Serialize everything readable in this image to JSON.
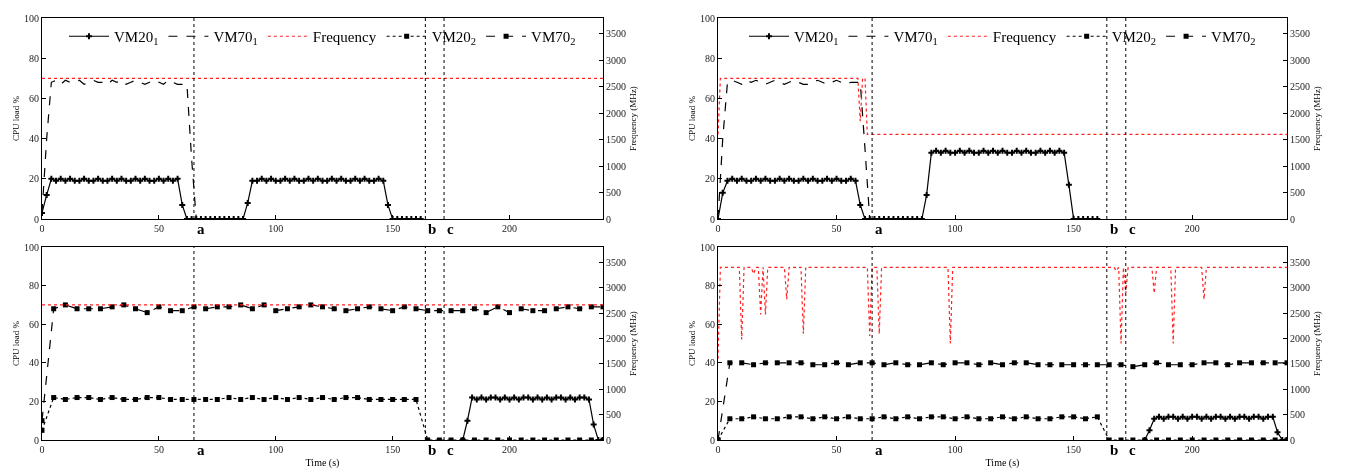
{
  "chart_data": [
    {
      "type": "line",
      "ylabel": "CPU load %",
      "y2label": "Frequency (MHz)",
      "xlim": [
        0,
        240
      ],
      "xticks": [
        0,
        50,
        100,
        150,
        200
      ],
      "ylim": [
        0,
        100
      ],
      "yticks": [
        0,
        20,
        40,
        60,
        80,
        100
      ],
      "y2lim": [
        0,
        3800
      ],
      "y2ticks": [
        0,
        500,
        1000,
        1500,
        2000,
        2500,
        3000,
        3500
      ],
      "legend": "top",
      "ref_lines": [
        {
          "axis": "x",
          "value": 65,
          "label": "a",
          "color": "#000000",
          "line_style": "dotted"
        },
        {
          "axis": "x",
          "value": 164,
          "label": "b",
          "color": "#000000",
          "line_style": "dotted"
        },
        {
          "axis": "x",
          "value": 172,
          "label": "c",
          "color": "#000000",
          "line_style": "dotted"
        }
      ],
      "series": [
        {
          "name": "VM20$_{1}$",
          "color": "#000000",
          "marker": "cross",
          "line_style": "solid",
          "x": [
            0,
            2,
            4,
            6,
            8,
            10,
            12,
            14,
            16,
            18,
            20,
            22,
            24,
            26,
            28,
            30,
            32,
            34,
            36,
            38,
            40,
            42,
            44,
            46,
            48,
            50,
            52,
            54,
            56,
            58,
            60,
            62,
            64,
            66,
            68,
            70,
            72,
            74,
            76,
            78,
            80,
            82,
            84,
            86,
            88,
            90,
            92,
            94,
            96,
            98,
            100,
            102,
            104,
            106,
            108,
            110,
            112,
            114,
            116,
            118,
            120,
            122,
            124,
            126,
            128,
            130,
            132,
            134,
            136,
            138,
            140,
            142,
            144,
            146,
            148,
            150,
            152,
            154,
            156,
            158,
            160,
            162
          ],
          "values": [
            3,
            12,
            20,
            19,
            20,
            19,
            20,
            19,
            19,
            20,
            19,
            19,
            20,
            19,
            19,
            20,
            19,
            20,
            19,
            19,
            20,
            19,
            20,
            19,
            19,
            20,
            19,
            20,
            19,
            20,
            7,
            0,
            0,
            0,
            0,
            0,
            0,
            0,
            0,
            0,
            0,
            0,
            0,
            0,
            8,
            19,
            19,
            20,
            19,
            20,
            19,
            19,
            20,
            19,
            20,
            19,
            19,
            20,
            19,
            20,
            19,
            19,
            20,
            19,
            20,
            19,
            19,
            20,
            19,
            20,
            19,
            19,
            20,
            19,
            7,
            0,
            0,
            0,
            0,
            0,
            0,
            0
          ]
        },
        {
          "name": "VM70$_{1}$",
          "color": "#000000",
          "marker": "none",
          "line_style": "dashed",
          "x": [
            0,
            2,
            4,
            6,
            8,
            10,
            12,
            14,
            16,
            18,
            20,
            22,
            24,
            26,
            28,
            30,
            32,
            34,
            36,
            38,
            40,
            42,
            44,
            46,
            48,
            50,
            52,
            54,
            56,
            58,
            60,
            62,
            64,
            66
          ],
          "values": [
            3,
            40,
            68,
            69,
            67,
            69,
            68,
            68,
            69,
            67,
            68,
            69,
            68,
            68,
            67,
            69,
            68,
            69,
            67,
            68,
            69,
            68,
            67,
            68,
            69,
            68,
            67,
            69,
            68,
            67,
            67,
            67,
            30,
            0
          ]
        },
        {
          "name": "Frequency",
          "color": "#ff2020",
          "marker": "none",
          "line_style": "dotted",
          "axis": "y2",
          "x": [
            0,
            240
          ],
          "values": [
            2660,
            2660
          ]
        },
        {
          "name": "VM20$_{2}$",
          "color": "#000000",
          "marker": "square",
          "line_style": "dotted"
        },
        {
          "name": "VM70$_{2}$",
          "color": "#000000",
          "marker": "square",
          "line_style": "dashed"
        }
      ]
    },
    {
      "type": "line",
      "ylabel": "CPU load %",
      "y2label": "Frequency (MHz)",
      "xlim": [
        0,
        240
      ],
      "xticks": [
        0,
        50,
        100,
        150,
        200
      ],
      "ylim": [
        0,
        100
      ],
      "yticks": [
        0,
        20,
        40,
        60,
        80,
        100
      ],
      "y2lim": [
        0,
        3800
      ],
      "y2ticks": [
        0,
        500,
        1000,
        1500,
        2000,
        2500,
        3000,
        3500
      ],
      "legend": "top",
      "ref_lines": [
        {
          "axis": "x",
          "value": 65,
          "label": "a",
          "color": "#000000",
          "line_style": "dotted"
        },
        {
          "axis": "x",
          "value": 164,
          "label": "b",
          "color": "#000000",
          "line_style": "dotted"
        },
        {
          "axis": "x",
          "value": 172,
          "label": "c",
          "color": "#000000",
          "line_style": "dotted"
        }
      ],
      "series": [
        {
          "name": "VM20$_{1}$",
          "color": "#000000",
          "marker": "cross",
          "line_style": "solid",
          "x": [
            0,
            2,
            4,
            6,
            8,
            10,
            12,
            14,
            16,
            18,
            20,
            22,
            24,
            26,
            28,
            30,
            32,
            34,
            36,
            38,
            40,
            42,
            44,
            46,
            48,
            50,
            52,
            54,
            56,
            58,
            60,
            62,
            64,
            66,
            68,
            70,
            72,
            74,
            76,
            78,
            80,
            82,
            84,
            86,
            88,
            90,
            92,
            94,
            96,
            98,
            100,
            102,
            104,
            106,
            108,
            110,
            112,
            114,
            116,
            118,
            120,
            122,
            124,
            126,
            128,
            130,
            132,
            134,
            136,
            138,
            140,
            142,
            144,
            146,
            148,
            150,
            152,
            154,
            156,
            158,
            160
          ],
          "values": [
            0,
            13,
            19,
            20,
            19,
            20,
            19,
            19,
            20,
            19,
            20,
            19,
            19,
            20,
            19,
            20,
            19,
            19,
            20,
            19,
            20,
            19,
            19,
            20,
            19,
            20,
            19,
            19,
            20,
            19,
            7,
            0,
            0,
            0,
            0,
            0,
            0,
            0,
            0,
            0,
            0,
            0,
            0,
            0,
            12,
            33,
            34,
            33,
            34,
            33,
            33,
            34,
            33,
            34,
            33,
            33,
            34,
            33,
            34,
            33,
            34,
            33,
            33,
            34,
            33,
            34,
            33,
            33,
            34,
            33,
            34,
            33,
            34,
            33,
            17,
            0,
            0,
            0,
            0,
            0,
            0
          ]
        },
        {
          "name": "VM70$_{1}$",
          "color": "#000000",
          "marker": "none",
          "line_style": "dashed",
          "x": [
            0,
            2,
            4,
            6,
            8,
            10,
            12,
            14,
            16,
            18,
            20,
            22,
            24,
            26,
            28,
            30,
            32,
            34,
            36,
            38,
            40,
            42,
            44,
            46,
            48,
            50,
            52,
            54,
            56,
            58,
            60,
            62,
            64
          ],
          "values": [
            0,
            40,
            68,
            69,
            68,
            67,
            69,
            68,
            69,
            68,
            67,
            68,
            69,
            68,
            67,
            68,
            69,
            68,
            67,
            67,
            68,
            69,
            68,
            67,
            68,
            69,
            68,
            67,
            68,
            68,
            68,
            35,
            0
          ]
        },
        {
          "name": "Frequency",
          "color": "#ff2020",
          "marker": "none",
          "line_style": "dotted",
          "axis": "y2",
          "x": [
            0,
            1,
            59,
            60,
            61,
            62,
            63,
            240
          ],
          "values": [
            1600,
            2660,
            2660,
            1850,
            2660,
            2660,
            1600,
            1600
          ]
        },
        {
          "name": "VM20$_{2}$",
          "color": "#000000",
          "marker": "square",
          "line_style": "dotted"
        },
        {
          "name": "VM70$_{2}$",
          "color": "#000000",
          "marker": "square",
          "line_style": "dashed"
        }
      ]
    },
    {
      "type": "line",
      "xlabel": "Time (s)",
      "ylabel": "CPU load %",
      "y2label": "Frequency (MHz)",
      "xlim": [
        0,
        240
      ],
      "xticks": [
        0,
        50,
        100,
        150,
        200
      ],
      "ylim": [
        0,
        100
      ],
      "yticks": [
        0,
        20,
        40,
        60,
        80,
        100
      ],
      "y2lim": [
        0,
        3800
      ],
      "y2ticks": [
        0,
        500,
        1000,
        1500,
        2000,
        2500,
        3000,
        3500
      ],
      "ref_lines": [
        {
          "axis": "x",
          "value": 65,
          "label": "a",
          "color": "#000000",
          "line_style": "dotted"
        },
        {
          "axis": "x",
          "value": 164,
          "label": "b",
          "color": "#000000",
          "line_style": "dotted"
        },
        {
          "axis": "x",
          "value": 172,
          "label": "c",
          "color": "#000000",
          "line_style": "dotted"
        }
      ],
      "series": [
        {
          "color": "#000000",
          "marker": "cross",
          "line_style": "solid",
          "x": [
            180,
            182,
            184,
            186,
            188,
            190,
            192,
            194,
            196,
            198,
            200,
            202,
            204,
            206,
            208,
            210,
            212,
            214,
            216,
            218,
            220,
            222,
            224,
            226,
            228,
            230,
            232,
            234,
            236,
            238,
            240
          ],
          "values": [
            0,
            10,
            22,
            21,
            22,
            21,
            22,
            22,
            21,
            22,
            21,
            22,
            21,
            22,
            22,
            21,
            22,
            21,
            22,
            21,
            22,
            22,
            21,
            22,
            21,
            22,
            22,
            21,
            8,
            0,
            0
          ]
        },
        {
          "color": "#ff2020",
          "marker": "none",
          "line_style": "dotted",
          "axis": "y2",
          "x": [
            0,
            240
          ],
          "values": [
            2660,
            2660
          ]
        },
        {
          "color": "#000000",
          "marker": "square",
          "line_style": "dotted",
          "x": [
            0,
            5,
            10,
            15,
            20,
            25,
            30,
            35,
            40,
            45,
            50,
            55,
            60,
            65,
            70,
            75,
            80,
            85,
            90,
            95,
            100,
            105,
            110,
            115,
            120,
            125,
            130,
            135,
            140,
            145,
            150,
            155,
            160,
            165,
            170,
            175,
            180,
            185,
            190,
            195,
            200,
            205,
            210,
            215,
            220,
            225,
            230,
            235,
            240
          ],
          "values": [
            5,
            22,
            21,
            22,
            22,
            21,
            22,
            21,
            21,
            22,
            22,
            21,
            21,
            21,
            21,
            21,
            22,
            21,
            22,
            21,
            22,
            21,
            22,
            21,
            22,
            21,
            22,
            22,
            21,
            21,
            21,
            21,
            21,
            0,
            0,
            0,
            0,
            0,
            0,
            0,
            0,
            0,
            0,
            0,
            0,
            0,
            0,
            0,
            0
          ]
        },
        {
          "color": "#000000",
          "marker": "square",
          "line_style": "dashed",
          "x": [
            0,
            5,
            10,
            15,
            20,
            25,
            30,
            35,
            40,
            45,
            50,
            55,
            60,
            65,
            70,
            75,
            80,
            85,
            90,
            95,
            100,
            105,
            110,
            115,
            120,
            125,
            130,
            135,
            140,
            145,
            150,
            155,
            160,
            165,
            170,
            175,
            180,
            185,
            190,
            195,
            200,
            205,
            210,
            215,
            220,
            225,
            230,
            235,
            240
          ],
          "values": [
            10,
            68,
            70,
            68,
            68,
            68,
            69,
            70,
            68,
            66,
            69,
            67,
            67,
            69,
            68,
            69,
            69,
            70,
            68,
            70,
            67,
            68,
            69,
            70,
            69,
            68,
            67,
            68,
            69,
            68,
            67,
            69,
            68,
            67,
            67,
            67,
            67,
            68,
            66,
            69,
            66,
            68,
            67,
            67,
            68,
            69,
            68,
            69,
            69
          ]
        }
      ]
    },
    {
      "type": "line",
      "xlabel": "Time (s)",
      "ylabel": "CPU load %",
      "y2label": "Frequency (MHz)",
      "xlim": [
        0,
        240
      ],
      "xticks": [
        0,
        50,
        100,
        150,
        200
      ],
      "ylim": [
        0,
        100
      ],
      "yticks": [
        0,
        20,
        40,
        60,
        80,
        100
      ],
      "y2lim": [
        0,
        3800
      ],
      "y2ticks": [
        0,
        500,
        1000,
        1500,
        2000,
        2500,
        3000,
        3500
      ],
      "ref_lines": [
        {
          "axis": "x",
          "value": 65,
          "label": "a",
          "color": "#000000",
          "line_style": "dotted"
        },
        {
          "axis": "x",
          "value": 164,
          "label": "b",
          "color": "#000000",
          "line_style": "dotted"
        },
        {
          "axis": "x",
          "value": 172,
          "label": "c",
          "color": "#000000",
          "line_style": "dotted"
        }
      ],
      "series": [
        {
          "color": "#000000",
          "marker": "cross",
          "line_style": "solid",
          "x": [
            180,
            182,
            184,
            186,
            188,
            190,
            192,
            194,
            196,
            198,
            200,
            202,
            204,
            206,
            208,
            210,
            212,
            214,
            216,
            218,
            220,
            222,
            224,
            226,
            228,
            230,
            232,
            234,
            236,
            238,
            240
          ],
          "values": [
            0,
            5,
            11,
            12,
            11,
            12,
            12,
            11,
            12,
            11,
            12,
            12,
            11,
            12,
            11,
            12,
            12,
            11,
            12,
            11,
            12,
            12,
            11,
            12,
            12,
            11,
            12,
            12,
            4,
            0,
            0
          ]
        },
        {
          "color": "#ff2020",
          "marker": "none",
          "line_style": "dotted",
          "axis": "y2",
          "x": [
            0,
            1,
            9,
            10,
            11,
            14,
            15,
            16,
            17,
            18,
            19,
            20,
            21,
            28,
            29,
            30,
            35,
            36,
            37,
            63,
            64,
            65,
            67,
            68,
            69,
            97,
            98,
            99,
            167,
            168,
            169,
            170,
            171,
            172,
            173,
            183,
            184,
            185,
            191,
            192,
            193,
            204,
            205,
            206,
            240
          ],
          "values": [
            1600,
            3400,
            3400,
            1980,
            3400,
            3400,
            3270,
            3400,
            3400,
            2470,
            3400,
            2470,
            3400,
            3400,
            2770,
            3400,
            3400,
            2090,
            3400,
            3400,
            2050,
            3400,
            3400,
            2090,
            3400,
            3400,
            1900,
            3400,
            3400,
            3330,
            3400,
            1900,
            3400,
            2890,
            3400,
            3400,
            2890,
            3400,
            3400,
            1900,
            3400,
            3400,
            2770,
            3400,
            3400
          ]
        },
        {
          "color": "#000000",
          "marker": "square",
          "line_style": "dotted",
          "x": [
            0,
            5,
            10,
            15,
            20,
            25,
            30,
            35,
            40,
            45,
            50,
            55,
            60,
            65,
            70,
            75,
            80,
            85,
            90,
            95,
            100,
            105,
            110,
            115,
            120,
            125,
            130,
            135,
            140,
            145,
            150,
            155,
            160,
            165,
            170,
            175,
            180,
            185,
            190,
            195,
            200,
            205,
            210,
            215,
            220,
            225,
            230,
            235,
            240
          ],
          "values": [
            0,
            11,
            11,
            12,
            11,
            11,
            12,
            12,
            11,
            12,
            11,
            12,
            11,
            11,
            12,
            11,
            12,
            11,
            12,
            12,
            11,
            12,
            11,
            11,
            12,
            11,
            12,
            11,
            11,
            12,
            12,
            11,
            12,
            0,
            0,
            0,
            0,
            0,
            0,
            0,
            0,
            0,
            0,
            0,
            0,
            0,
            0,
            0,
            0
          ]
        },
        {
          "color": "#000000",
          "marker": "square",
          "line_style": "dashed",
          "x": [
            0,
            5,
            10,
            15,
            20,
            25,
            30,
            35,
            40,
            45,
            50,
            55,
            60,
            65,
            70,
            75,
            80,
            85,
            90,
            95,
            100,
            105,
            110,
            115,
            120,
            125,
            130,
            135,
            140,
            145,
            150,
            155,
            160,
            165,
            170,
            175,
            180,
            185,
            190,
            195,
            200,
            205,
            210,
            215,
            220,
            225,
            230,
            235,
            240
          ],
          "values": [
            0,
            40,
            40,
            39,
            40,
            40,
            40,
            40,
            39,
            39,
            40,
            39,
            40,
            40,
            39,
            40,
            39,
            39,
            40,
            39,
            40,
            40,
            39,
            40,
            39,
            40,
            40,
            39,
            39,
            39,
            39,
            39,
            39,
            39,
            39,
            38,
            39,
            40,
            39,
            39,
            39,
            40,
            40,
            39,
            40,
            40,
            40,
            40,
            40
          ]
        }
      ]
    }
  ]
}
